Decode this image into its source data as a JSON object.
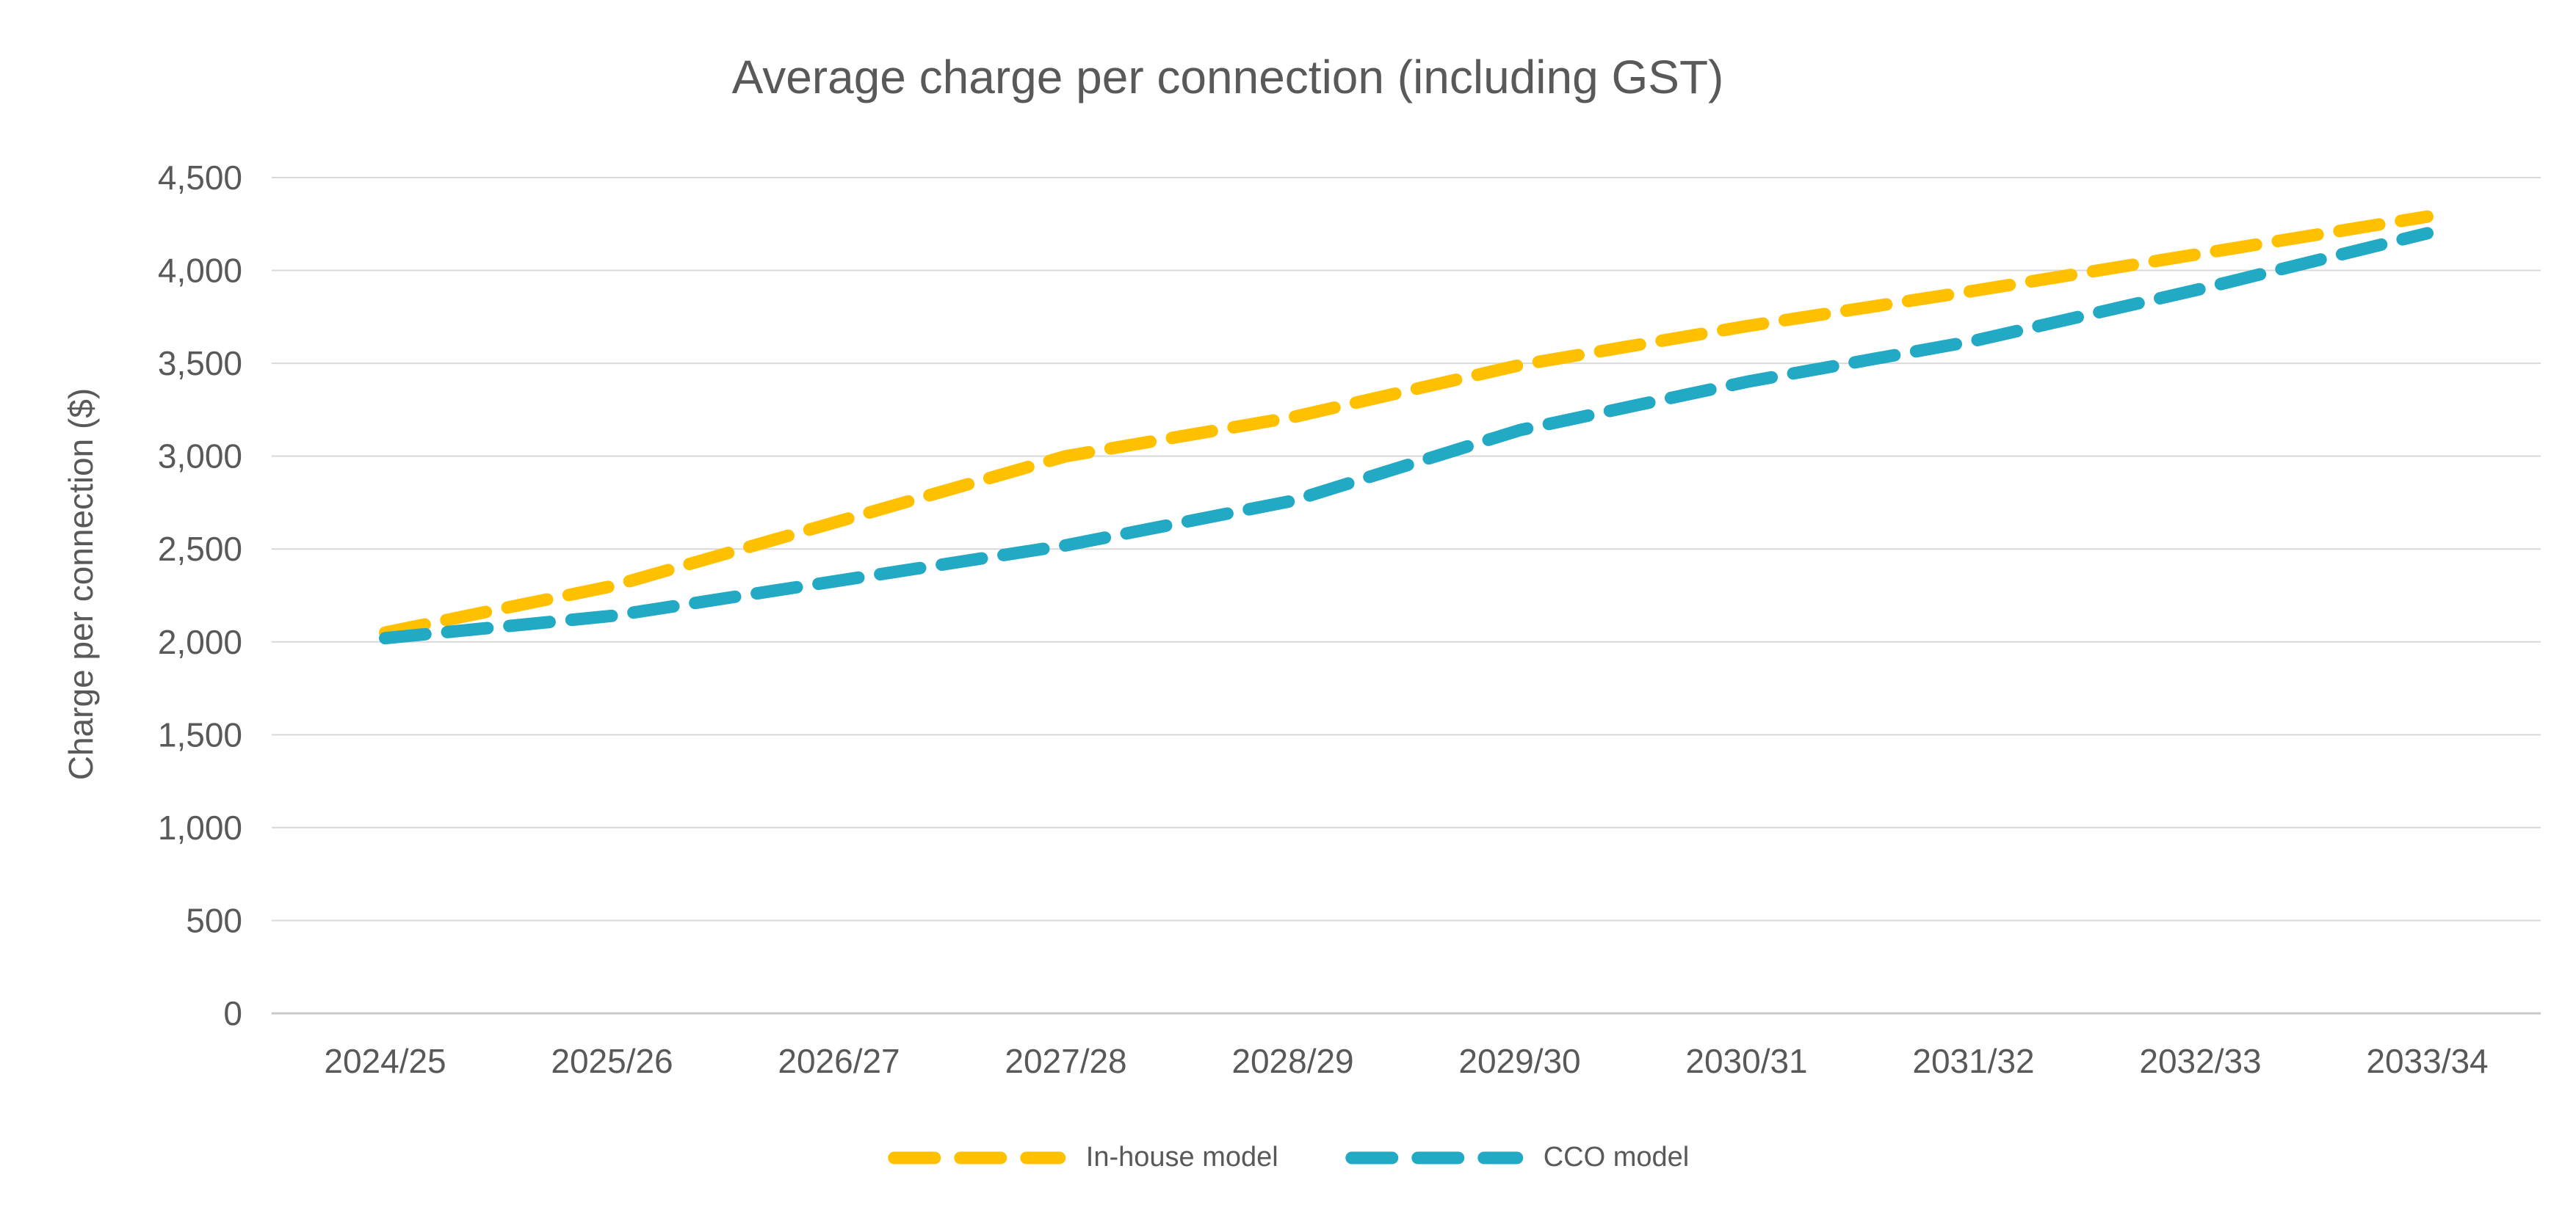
{
  "chart_data": {
    "type": "line",
    "title": "Average charge per connection (including GST)",
    "xlabel": "",
    "ylabel": "Charge per connection ($)",
    "categories": [
      "2024/25",
      "2025/26",
      "2026/27",
      "2027/28",
      "2028/29",
      "2029/30",
      "2030/31",
      "2031/32",
      "2032/33",
      "2033/34"
    ],
    "series": [
      {
        "name": "In-house model",
        "color": "#FFC000",
        "line_style": "dashed",
        "values": [
          2050,
          2300,
          2650,
          3000,
          3210,
          3490,
          3700,
          3890,
          4090,
          4290
        ]
      },
      {
        "name": "CCO model",
        "color": "#22A9C4",
        "line_style": "dashed",
        "values": [
          2020,
          2140,
          2330,
          2520,
          2760,
          3140,
          3400,
          3620,
          3900,
          4200
        ]
      }
    ],
    "ylim": [
      0,
      4500
    ],
    "ytick_step": 500,
    "ytick_labels": [
      "0",
      "500",
      "1,000",
      "1,500",
      "2,000",
      "2,500",
      "3,000",
      "3,500",
      "4,000",
      "4,500"
    ],
    "grid": true,
    "legend_position": "bottom"
  },
  "colors": {
    "text": "#595959",
    "grid": "#D9D9D9",
    "axis": "#C9C9C9",
    "in_house": "#FFC000",
    "cco": "#22A9C4"
  }
}
